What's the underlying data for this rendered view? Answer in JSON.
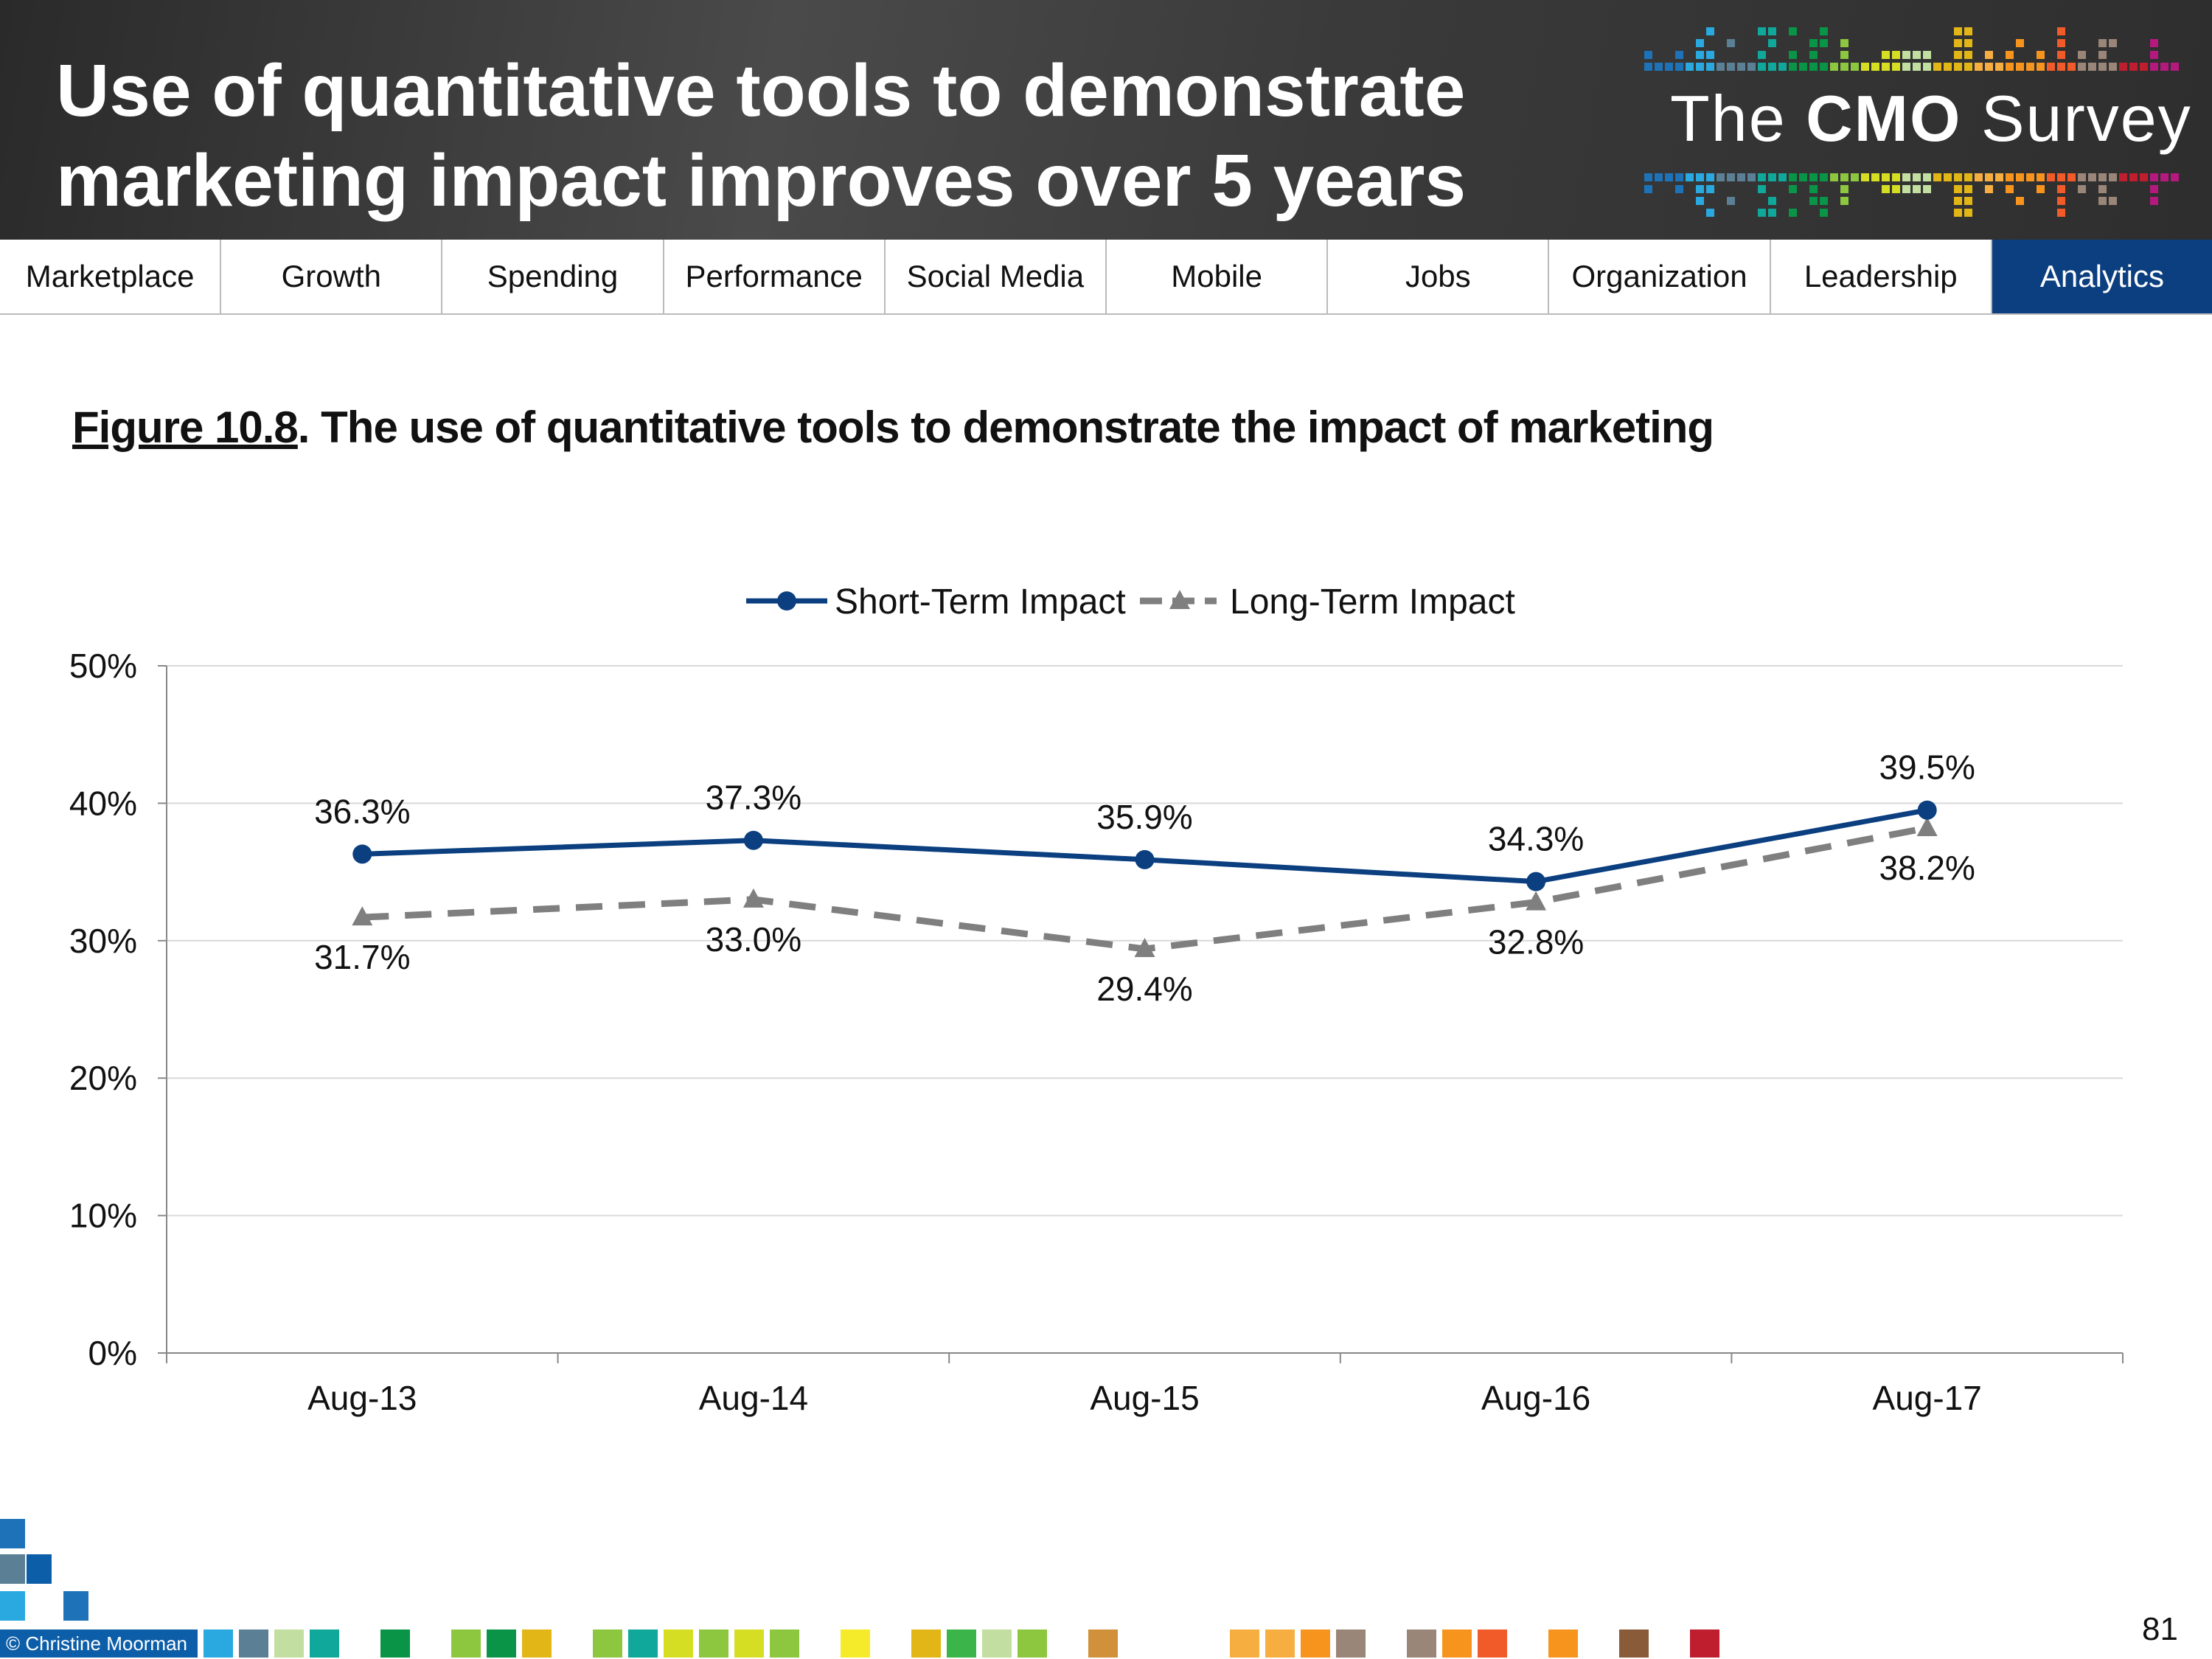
{
  "header": {
    "title_line1": "Use of quantitative tools to demonstrate",
    "title_line2": "marketing impact improves over 5 years",
    "logo_the": "The",
    "logo_cmo": "CMO",
    "logo_survey": "Survey"
  },
  "nav": {
    "items": [
      {
        "label": "Marketplace"
      },
      {
        "label": "Growth"
      },
      {
        "label": "Spending"
      },
      {
        "label": "Performance"
      },
      {
        "label": "Social Media"
      },
      {
        "label": "Mobile"
      },
      {
        "label": "Jobs"
      },
      {
        "label": "Organization"
      },
      {
        "label": "Leadership"
      },
      {
        "label": "Analytics",
        "active": true
      }
    ],
    "active_color": "#0b3f7f"
  },
  "figure": {
    "label": "Figure 10.8",
    "title": ". The use of quantitative tools to demonstrate the impact of marketing"
  },
  "chart_data": {
    "type": "line",
    "categories": [
      "Aug-13",
      "Aug-14",
      "Aug-15",
      "Aug-16",
      "Aug-17"
    ],
    "series": [
      {
        "name": "Short-Term Impact",
        "values": [
          36.3,
          37.3,
          35.9,
          34.3,
          39.5
        ],
        "color": "#0b3f7f",
        "marker": "circle",
        "dash": "solid"
      },
      {
        "name": "Long-Term Impact",
        "values": [
          31.7,
          33.0,
          29.4,
          32.8,
          38.2
        ],
        "color": "#7f7f7f",
        "marker": "triangle",
        "dash": "dashed"
      }
    ],
    "data_labels": {
      "Short-Term Impact": [
        "36.3%",
        "37.3%",
        "35.9%",
        "34.3%",
        "39.5%"
      ],
      "Long-Term Impact": [
        "31.7%",
        "33.0%",
        "29.4%",
        "32.8%",
        "38.2%"
      ]
    },
    "ylim": [
      0,
      50
    ],
    "yticks": [
      0,
      10,
      20,
      30,
      40,
      50
    ],
    "ytick_labels": [
      "0%",
      "10%",
      "20%",
      "30%",
      "40%",
      "50%"
    ],
    "grid": true,
    "legend": "top-center"
  },
  "footer": {
    "copyright": "© Christine Moorman",
    "page_number": "81",
    "swatches": [
      "#29a9e0",
      "#5b7f94",
      "#c3dea1",
      "#0fa89a",
      "",
      "#0a9447",
      "",
      "#8dc63f",
      "#0a9447",
      "#e2b616",
      "",
      "#8dc63f",
      "#0fa89a",
      "#d6de23",
      "#8dc63f",
      "#d6de23",
      "#8dc63f",
      "",
      "#f6eb2a",
      "",
      "#e2b616",
      "#3bb44a",
      "#c3dea1",
      "#8dc63f",
      "",
      "#d0913a",
      "",
      "",
      "",
      "#f7ae40",
      "#f7ae40",
      "#f7941e",
      "#9a8579",
      "",
      "#9a8579",
      "#f7941e",
      "#f15a29",
      "",
      "#f7941e",
      "",
      "#8a5b38",
      "",
      "#be1e2d"
    ]
  }
}
